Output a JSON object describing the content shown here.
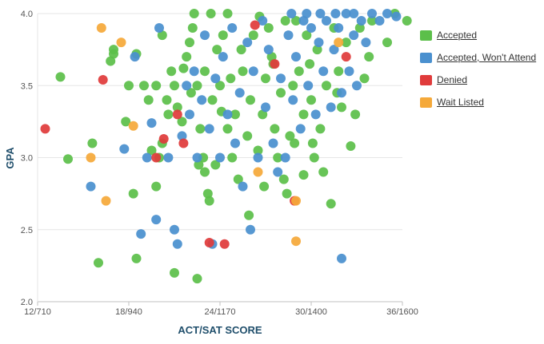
{
  "chart_data": {
    "type": "scatter",
    "xlabel": "ACT/SAT SCORE",
    "ylabel": "GPA",
    "x_ticks": [
      {
        "value": 12,
        "label": "12/710"
      },
      {
        "value": 18,
        "label": "18/940"
      },
      {
        "value": 24,
        "label": "24/1170"
      },
      {
        "value": 30,
        "label": "30/1400"
      },
      {
        "value": 36,
        "label": "36/1600"
      }
    ],
    "y_ticks": [
      {
        "value": 2.0,
        "label": "2.0"
      },
      {
        "value": 2.5,
        "label": "2.5"
      },
      {
        "value": 3.0,
        "label": "3.0"
      },
      {
        "value": 3.5,
        "label": "3.5"
      },
      {
        "value": 4.0,
        "label": "4.0"
      }
    ],
    "xlim": [
      12,
      36
    ],
    "ylim": [
      2.0,
      4.0
    ],
    "grid": true,
    "legend_position": "right",
    "series": [
      {
        "name": "Accepted",
        "color": "#5cbf4a",
        "points": [
          [
            13.5,
            3.56
          ],
          [
            14,
            2.99
          ],
          [
            15.6,
            3.1
          ],
          [
            16,
            2.27
          ],
          [
            17,
            3.72
          ],
          [
            17,
            3.75
          ],
          [
            16.8,
            3.67
          ],
          [
            18,
            3.5
          ],
          [
            17.8,
            3.25
          ],
          [
            18.5,
            3.72
          ],
          [
            18.3,
            2.75
          ],
          [
            18.5,
            2.3
          ],
          [
            19,
            3.5
          ],
          [
            19.3,
            3.4
          ],
          [
            19.8,
            3.5
          ],
          [
            20,
            3.0
          ],
          [
            19.5,
            3.05
          ],
          [
            19.8,
            2.8
          ],
          [
            20.2,
            3.85
          ],
          [
            20.5,
            3.4
          ],
          [
            20.8,
            3.6
          ],
          [
            20.6,
            3.3
          ],
          [
            20.2,
            3.1
          ],
          [
            21,
            2.2
          ],
          [
            21,
            3.5
          ],
          [
            21.2,
            3.35
          ],
          [
            21.5,
            3.25
          ],
          [
            21.8,
            3.7
          ],
          [
            22,
            3.8
          ],
          [
            22.2,
            3.9
          ],
          [
            22.5,
            3.5
          ],
          [
            22.7,
            3.2
          ],
          [
            22.9,
            3.0
          ],
          [
            22.6,
            2.95
          ],
          [
            23,
            2.9
          ],
          [
            23.2,
            2.75
          ],
          [
            22.5,
            2.16
          ],
          [
            23.3,
            2.7
          ],
          [
            23,
            3.6
          ],
          [
            23.5,
            3.4
          ],
          [
            23.8,
            3.75
          ],
          [
            24,
            3.5
          ],
          [
            24.2,
            3.85
          ],
          [
            24.5,
            3.2
          ],
          [
            24.5,
            4.0
          ],
          [
            23.4,
            4.0
          ],
          [
            22.3,
            4.0
          ],
          [
            25,
            3.3
          ],
          [
            24.8,
            3.0
          ],
          [
            25.2,
            2.85
          ],
          [
            25.5,
            3.6
          ],
          [
            25.8,
            3.15
          ],
          [
            26,
            3.4
          ],
          [
            26.2,
            3.85
          ],
          [
            26.5,
            3.05
          ],
          [
            26.8,
            3.3
          ],
          [
            27,
            3.55
          ],
          [
            27.2,
            3.9
          ],
          [
            27.4,
            3.7
          ],
          [
            27.6,
            3.2
          ],
          [
            27.8,
            3.0
          ],
          [
            28,
            3.45
          ],
          [
            28.2,
            2.85
          ],
          [
            28.4,
            2.75
          ],
          [
            28.6,
            3.15
          ],
          [
            28.8,
            3.5
          ],
          [
            29,
            3.95
          ],
          [
            29.2,
            3.6
          ],
          [
            29.5,
            3.3
          ],
          [
            29.7,
            3.85
          ],
          [
            30,
            3.4
          ],
          [
            30.2,
            3.0
          ],
          [
            30.4,
            3.75
          ],
          [
            30.6,
            3.2
          ],
          [
            31,
            3.5
          ],
          [
            31.3,
            2.68
          ],
          [
            31.5,
            3.9
          ],
          [
            31.8,
            3.6
          ],
          [
            32,
            3.35
          ],
          [
            32.3,
            3.8
          ],
          [
            32.6,
            3.08
          ],
          [
            32.9,
            3.3
          ],
          [
            33.2,
            3.9
          ],
          [
            33.5,
            3.55
          ],
          [
            34,
            3.95
          ],
          [
            35,
            3.8
          ],
          [
            35.5,
            4.0
          ],
          [
            36.3,
            3.95
          ],
          [
            25.4,
            3.75
          ],
          [
            26.6,
            3.98
          ],
          [
            28.9,
            3.1
          ],
          [
            29.5,
            2.88
          ],
          [
            30.8,
            2.9
          ],
          [
            24.1,
            3.32
          ],
          [
            21.6,
            3.62
          ],
          [
            26.9,
            2.8
          ],
          [
            23.7,
            2.95
          ],
          [
            25.9,
            2.6
          ],
          [
            27.5,
            3.65
          ],
          [
            30.1,
            3.1
          ],
          [
            31.7,
            3.45
          ],
          [
            33.8,
            3.7
          ],
          [
            22.1,
            3.45
          ],
          [
            24.7,
            3.55
          ],
          [
            28.3,
            3.95
          ],
          [
            29.9,
            3.65
          ]
        ]
      },
      {
        "name": "Accepted, Won't Attend",
        "color": "#4a90cf",
        "points": [
          [
            15.5,
            2.8
          ],
          [
            17.7,
            3.06
          ],
          [
            18.4,
            3.7
          ],
          [
            18.8,
            2.47
          ],
          [
            19.2,
            3.0
          ],
          [
            19.5,
            3.24
          ],
          [
            19.8,
            2.57
          ],
          [
            20,
            3.9
          ],
          [
            20.6,
            3.0
          ],
          [
            21,
            2.5
          ],
          [
            21.2,
            2.4
          ],
          [
            21.5,
            3.15
          ],
          [
            21.8,
            3.5
          ],
          [
            22,
            3.3
          ],
          [
            22.3,
            3.6
          ],
          [
            22.5,
            3.0
          ],
          [
            22.8,
            3.4
          ],
          [
            23,
            3.85
          ],
          [
            23.3,
            3.2
          ],
          [
            23.5,
            2.4
          ],
          [
            23.7,
            3.55
          ],
          [
            24,
            3.0
          ],
          [
            24.2,
            3.7
          ],
          [
            24.5,
            3.3
          ],
          [
            24.8,
            3.9
          ],
          [
            25,
            3.1
          ],
          [
            25.3,
            3.45
          ],
          [
            25.5,
            2.8
          ],
          [
            25.8,
            3.8
          ],
          [
            26,
            2.5
          ],
          [
            26.2,
            3.6
          ],
          [
            26.5,
            3.0
          ],
          [
            26.8,
            3.95
          ],
          [
            27,
            3.35
          ],
          [
            27.2,
            3.75
          ],
          [
            27.5,
            3.1
          ],
          [
            27.8,
            2.9
          ],
          [
            28,
            3.55
          ],
          [
            28.3,
            3.0
          ],
          [
            28.5,
            3.85
          ],
          [
            28.8,
            3.4
          ],
          [
            29,
            3.7
          ],
          [
            29.3,
            3.2
          ],
          [
            29.5,
            3.95
          ],
          [
            29.8,
            3.5
          ],
          [
            30,
            3.9
          ],
          [
            30.3,
            3.3
          ],
          [
            30.5,
            3.8
          ],
          [
            30.8,
            3.6
          ],
          [
            31,
            3.95
          ],
          [
            31.3,
            3.35
          ],
          [
            31.5,
            3.75
          ],
          [
            31.8,
            3.9
          ],
          [
            32,
            3.45
          ],
          [
            32.3,
            4.0
          ],
          [
            32.5,
            3.6
          ],
          [
            32.8,
            3.85
          ],
          [
            33,
            3.5
          ],
          [
            33.3,
            3.95
          ],
          [
            33.6,
            3.8
          ],
          [
            34,
            4.0
          ],
          [
            34.5,
            3.95
          ],
          [
            35,
            4.0
          ],
          [
            35.6,
            3.98
          ],
          [
            32,
            2.3
          ],
          [
            30.6,
            4.0
          ],
          [
            31.6,
            4.0
          ],
          [
            32.8,
            4.0
          ],
          [
            29.7,
            4.0
          ],
          [
            28.7,
            4.0
          ]
        ]
      },
      {
        "name": "Denied",
        "color": "#e03b3b",
        "points": [
          [
            12.5,
            3.2
          ],
          [
            16.3,
            3.54
          ],
          [
            19.8,
            3.0
          ],
          [
            20.3,
            3.13
          ],
          [
            21.2,
            3.3
          ],
          [
            21.6,
            3.1
          ],
          [
            23.3,
            2.41
          ],
          [
            24.3,
            2.4
          ],
          [
            26.3,
            3.92
          ],
          [
            27.6,
            3.65
          ],
          [
            28.9,
            2.7
          ],
          [
            32.3,
            3.7
          ]
        ]
      },
      {
        "name": "Wait Listed",
        "color": "#f5a93a",
        "points": [
          [
            15.5,
            3.0
          ],
          [
            16.2,
            3.9
          ],
          [
            16.5,
            2.7
          ],
          [
            17.5,
            3.8
          ],
          [
            18.3,
            3.22
          ],
          [
            26.5,
            2.9
          ],
          [
            29,
            2.7
          ],
          [
            29,
            2.42
          ],
          [
            31.8,
            3.8
          ]
        ]
      }
    ]
  }
}
